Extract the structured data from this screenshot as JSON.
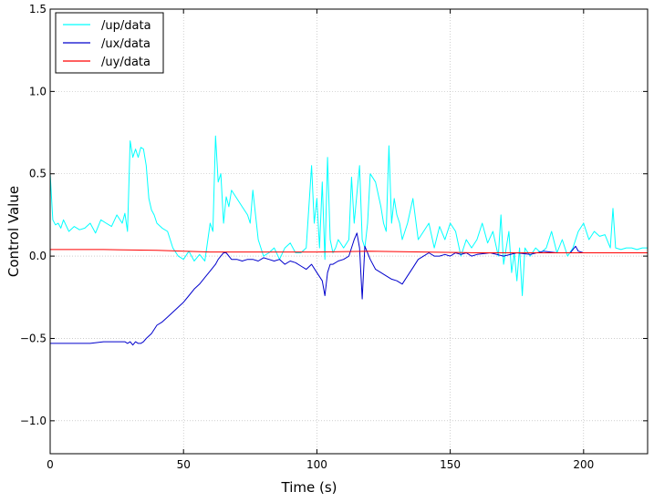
{
  "chart_data": {
    "type": "line",
    "title": "",
    "xlabel": "Time (s)",
    "ylabel": "Control Value",
    "xlim": [
      0,
      224
    ],
    "ylim": [
      -1.2,
      1.5
    ],
    "grid": true,
    "legend_position": "top-left",
    "xticks": [
      0,
      50,
      100,
      150,
      200
    ],
    "xtick_labels": [
      "0",
      "50",
      "100",
      "150",
      "200"
    ],
    "yticks": [
      -1.0,
      -0.5,
      0.0,
      0.5,
      1.0,
      1.5
    ],
    "ytick_labels": [
      "−1.0",
      "−0.5",
      "0.0",
      "0.5",
      "1.0",
      "1.5"
    ],
    "series": [
      {
        "name": "/up/data",
        "color": "#00ffff",
        "x": [
          0,
          1,
          2,
          3,
          4,
          5,
          7,
          9,
          11,
          13,
          15,
          17,
          19,
          21,
          23,
          25,
          27,
          28,
          29,
          30,
          31,
          32,
          33,
          34,
          35,
          36,
          37,
          38,
          39,
          40,
          42,
          44,
          46,
          48,
          50,
          52,
          54,
          56,
          58,
          60,
          61,
          62,
          63,
          64,
          65,
          66,
          67,
          68,
          70,
          72,
          74,
          75,
          76,
          78,
          80,
          82,
          84,
          86,
          88,
          90,
          92,
          94,
          96,
          98,
          99,
          100,
          101,
          102,
          103,
          104,
          105,
          106,
          107,
          108,
          110,
          112,
          113,
          114,
          115,
          116,
          117,
          118,
          119,
          120,
          122,
          124,
          125,
          126,
          127,
          128,
          129,
          130,
          131,
          132,
          133,
          134,
          136,
          138,
          140,
          142,
          144,
          146,
          148,
          150,
          152,
          154,
          156,
          158,
          160,
          162,
          164,
          166,
          168,
          169,
          170,
          171,
          172,
          173,
          174,
          175,
          176,
          177,
          178,
          180,
          182,
          184,
          186,
          188,
          190,
          192,
          194,
          196,
          198,
          200,
          202,
          204,
          206,
          208,
          210,
          211,
          212,
          214,
          216,
          218,
          220,
          222,
          224
        ],
        "values": [
          0.5,
          0.22,
          0.19,
          0.2,
          0.17,
          0.22,
          0.15,
          0.18,
          0.16,
          0.17,
          0.2,
          0.14,
          0.22,
          0.2,
          0.18,
          0.25,
          0.2,
          0.26,
          0.15,
          0.7,
          0.6,
          0.65,
          0.6,
          0.66,
          0.65,
          0.55,
          0.35,
          0.28,
          0.25,
          0.2,
          0.17,
          0.15,
          0.05,
          0.0,
          -0.02,
          0.03,
          -0.03,
          0.01,
          -0.03,
          0.2,
          0.15,
          0.73,
          0.45,
          0.5,
          0.2,
          0.36,
          0.3,
          0.4,
          0.35,
          0.3,
          0.25,
          0.2,
          0.4,
          0.1,
          0.0,
          0.02,
          0.05,
          -0.02,
          0.05,
          0.08,
          0.02,
          0.02,
          0.05,
          0.55,
          0.2,
          0.35,
          0.05,
          0.45,
          -0.02,
          0.6,
          0.1,
          0.02,
          0.05,
          0.1,
          0.05,
          0.1,
          0.48,
          0.2,
          0.38,
          0.55,
          0.1,
          0.05,
          0.2,
          0.5,
          0.45,
          0.3,
          0.2,
          0.15,
          0.67,
          0.2,
          0.35,
          0.25,
          0.2,
          0.1,
          0.15,
          0.2,
          0.35,
          0.1,
          0.15,
          0.2,
          0.05,
          0.18,
          0.1,
          0.2,
          0.15,
          0.0,
          0.1,
          0.05,
          0.1,
          0.2,
          0.08,
          0.15,
          0.0,
          0.25,
          -0.05,
          0.05,
          0.15,
          -0.1,
          0.02,
          -0.15,
          0.05,
          -0.24,
          0.05,
          0.0,
          0.05,
          0.02,
          0.05,
          0.15,
          0.02,
          0.1,
          0.0,
          0.05,
          0.15,
          0.2,
          0.1,
          0.15,
          0.12,
          0.13,
          0.05,
          0.29,
          0.05,
          0.04,
          0.05,
          0.05,
          0.04,
          0.05,
          0.05
        ]
      },
      {
        "name": "/ux/data",
        "color": "#0000cc",
        "x": [
          0,
          5,
          10,
          15,
          20,
          25,
          28,
          29,
          30,
          31,
          32,
          33,
          34,
          35,
          36,
          38,
          40,
          42,
          44,
          46,
          48,
          50,
          52,
          54,
          56,
          58,
          60,
          62,
          63,
          64,
          65,
          66,
          68,
          70,
          72,
          74,
          76,
          78,
          80,
          82,
          84,
          86,
          88,
          90,
          92,
          94,
          96,
          98,
          100,
          102,
          103,
          104,
          105,
          106,
          108,
          110,
          112,
          114,
          115,
          116,
          117,
          118,
          120,
          122,
          124,
          126,
          128,
          130,
          132,
          134,
          136,
          138,
          140,
          142,
          144,
          146,
          148,
          150,
          152,
          154,
          156,
          158,
          160,
          165,
          170,
          175,
          180,
          185,
          190,
          195,
          197,
          198,
          200,
          205,
          210,
          215,
          220,
          224
        ],
        "values": [
          -0.53,
          -0.53,
          -0.53,
          -0.53,
          -0.52,
          -0.52,
          -0.52,
          -0.53,
          -0.52,
          -0.54,
          -0.52,
          -0.53,
          -0.53,
          -0.52,
          -0.5,
          -0.47,
          -0.42,
          -0.4,
          -0.37,
          -0.34,
          -0.31,
          -0.28,
          -0.24,
          -0.2,
          -0.17,
          -0.13,
          -0.09,
          -0.05,
          -0.02,
          0.0,
          0.02,
          0.02,
          -0.02,
          -0.02,
          -0.03,
          -0.02,
          -0.02,
          -0.03,
          -0.01,
          -0.02,
          -0.03,
          -0.02,
          -0.05,
          -0.03,
          -0.04,
          -0.06,
          -0.08,
          -0.05,
          -0.1,
          -0.15,
          -0.24,
          -0.1,
          -0.05,
          -0.05,
          -0.03,
          -0.02,
          0.0,
          0.1,
          0.14,
          0.05,
          -0.26,
          0.06,
          -0.02,
          -0.08,
          -0.1,
          -0.12,
          -0.14,
          -0.15,
          -0.17,
          -0.12,
          -0.07,
          -0.02,
          0.0,
          0.02,
          0.0,
          0.0,
          0.01,
          0.0,
          0.02,
          0.01,
          0.02,
          0.0,
          0.01,
          0.02,
          0.0,
          0.02,
          0.01,
          0.03,
          0.02,
          0.02,
          0.06,
          0.03,
          0.02,
          0.02,
          0.02,
          0.02,
          0.02,
          0.02
        ]
      },
      {
        "name": "/uy/data",
        "color": "#ff0000",
        "x": [
          0,
          20,
          40,
          60,
          80,
          100,
          120,
          140,
          160,
          180,
          200,
          224
        ],
        "values": [
          0.04,
          0.04,
          0.035,
          0.025,
          0.025,
          0.025,
          0.03,
          0.025,
          0.02,
          0.02,
          0.02,
          0.02
        ]
      }
    ]
  }
}
